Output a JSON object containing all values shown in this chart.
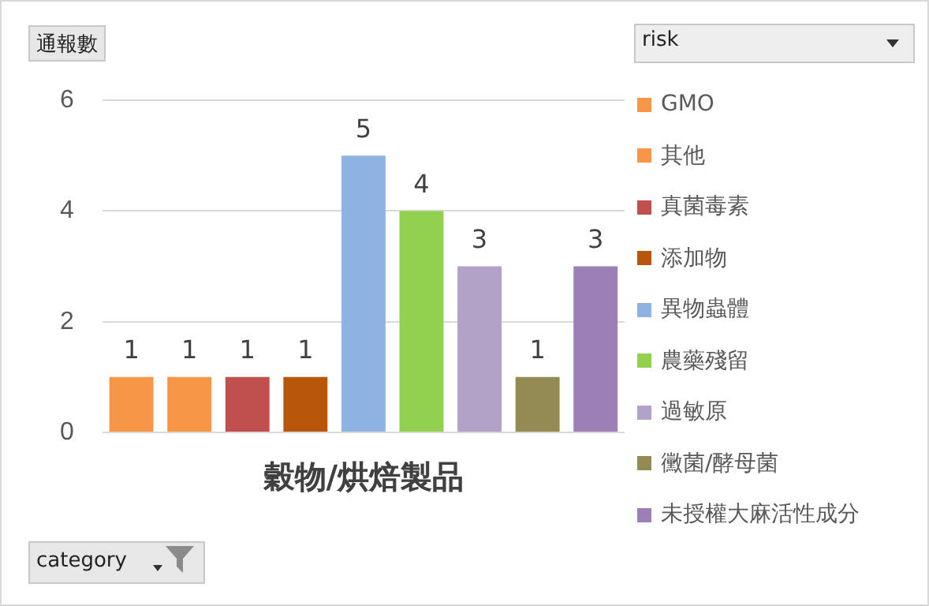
{
  "chart_data": {
    "type": "bar",
    "ylabel": "通報數",
    "annotations": [
      "category"
    ],
    "legend_title": "risk",
    "categories": [
      null,
      null,
      null,
      null,
      "穀物/烘焙製品",
      null,
      null,
      null,
      null
    ],
    "series": [
      {
        "name": "GMO",
        "color": "#f79646",
        "values": [
          1,
          null,
          null,
          null,
          null,
          null,
          null,
          null,
          null
        ]
      },
      {
        "name": "其他",
        "color": "#f79646",
        "values": [
          null,
          1,
          null,
          null,
          null,
          null,
          null,
          null,
          null
        ]
      },
      {
        "name": "真菌毒素",
        "color": "#c0504d",
        "values": [
          null,
          null,
          1,
          null,
          null,
          null,
          null,
          null,
          null
        ]
      },
      {
        "name": "添加物",
        "color": "#b8560b",
        "values": [
          null,
          null,
          null,
          1,
          null,
          null,
          null,
          null,
          null
        ]
      },
      {
        "name": "異物蟲體",
        "color": "#8db3e2",
        "values": [
          null,
          null,
          null,
          null,
          5,
          null,
          null,
          null,
          null
        ]
      },
      {
        "name": "農藥殘留",
        "color": "#92d050",
        "values": [
          null,
          null,
          null,
          null,
          null,
          4,
          null,
          null,
          null
        ]
      },
      {
        "name": "過敏原",
        "color": "#b3a2c7",
        "values": [
          null,
          null,
          null,
          null,
          null,
          null,
          3,
          null,
          null
        ]
      },
      {
        "name": "黴菌/酵母菌",
        "color": "#948a54",
        "values": [
          null,
          null,
          null,
          null,
          null,
          null,
          null,
          1,
          null
        ]
      },
      {
        "name": "未授權大麻活性成分",
        "color": "#9b7fb5",
        "values": [
          null,
          null,
          null,
          null,
          null,
          null,
          null,
          null,
          3
        ]
      }
    ],
    "ylim": [
      0,
      6
    ],
    "yticks": [
      0,
      2,
      4,
      6
    ],
    "grid": "y",
    "legend": "right",
    "data_labels": true
  }
}
